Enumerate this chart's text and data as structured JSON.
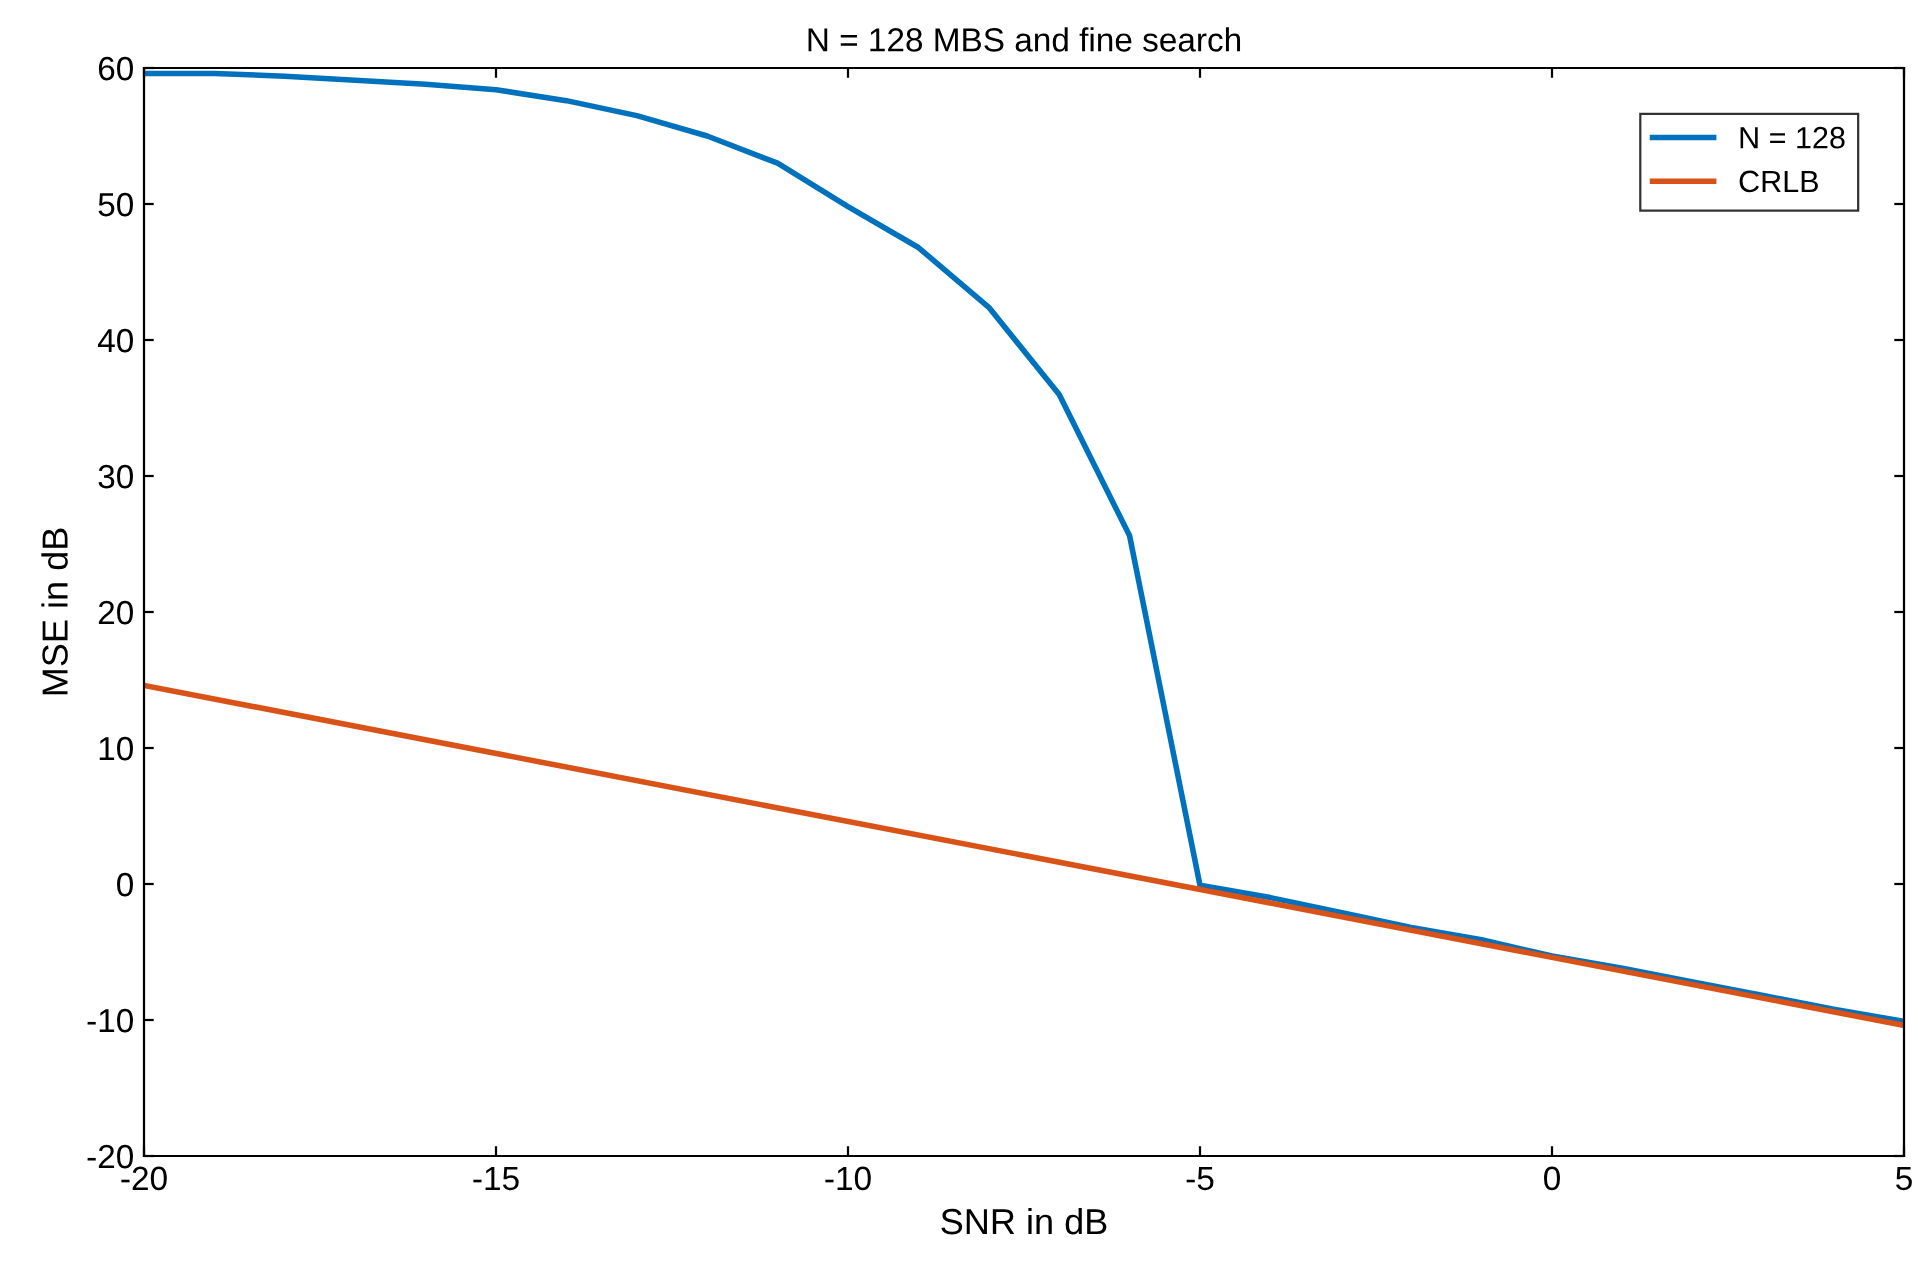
{
  "chart_data": {
    "type": "line",
    "title": "N = 128 MBS and fine search",
    "xlabel": "SNR in dB",
    "ylabel": "MSE in dB",
    "series": [
      {
        "name": "N = 128",
        "color": "#0072bd",
        "x": [
          -20,
          -19,
          -18,
          -17,
          -16,
          -15,
          -14,
          -13,
          -12,
          -11,
          -10,
          -9,
          -8,
          -7,
          -6,
          -5,
          -4,
          -3,
          -2,
          -1,
          0,
          1,
          2,
          3,
          4,
          5
        ],
        "values": [
          59.6,
          59.6,
          59.4,
          59.1,
          58.8,
          58.4,
          57.6,
          56.5,
          55,
          53,
          49.8,
          46.8,
          42.4,
          36,
          25.6,
          -0.1,
          -1.0,
          -2.1,
          -3.2,
          -4.1,
          -5.3,
          -6.2,
          -7.2,
          -8.2,
          -9.2,
          -10.1
        ]
      },
      {
        "name": "CRLB",
        "color": "#d95319",
        "x": [
          -20,
          5
        ],
        "values": [
          14.6,
          -10.4
        ]
      }
    ],
    "xlim": [
      -20,
      5
    ],
    "xticks": [
      -20,
      -15,
      -10,
      -5,
      0,
      5
    ],
    "ylim": [
      -20,
      60
    ],
    "yticks": [
      -20,
      -10,
      0,
      10,
      20,
      30,
      40,
      50,
      60
    ],
    "grid": false,
    "legend": "top right",
    "marker": "none",
    "line_style": "solid"
  }
}
